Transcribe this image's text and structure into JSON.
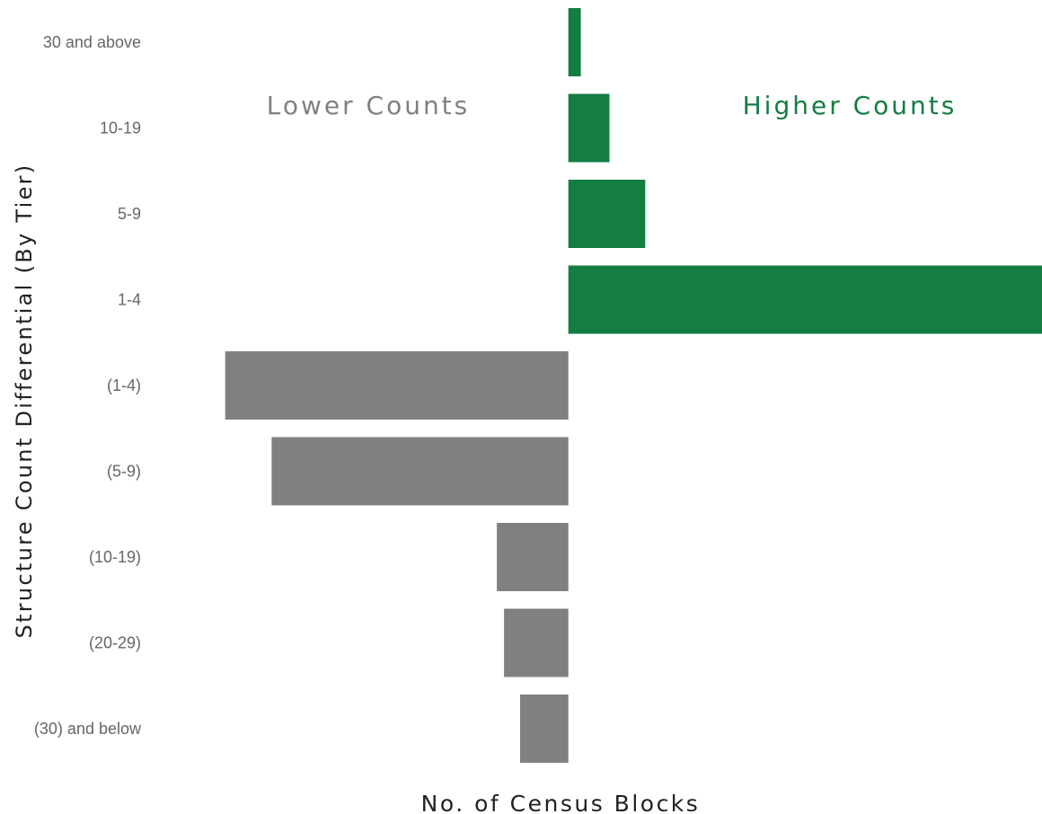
{
  "chart_data": {
    "type": "bar",
    "orientation": "horizontal",
    "title": "",
    "xlabel": "No. of Census Blocks",
    "ylabel": "Structure Count Differential (By Tier)",
    "annotations": {
      "left": "Lower Counts",
      "right": "Higher Counts"
    },
    "categories": [
      "30 and above",
      "10-19",
      "5-9",
      "1-4",
      "(1-4)",
      "(5-9)",
      "(10-19)",
      "(20-29)",
      "(30) and below"
    ],
    "series": [
      {
        "values": [
          7,
          23,
          43,
          265,
          -192,
          -166,
          -40,
          -36,
          -27
        ]
      }
    ],
    "xlim": [
      -318,
      265
    ],
    "grid": false,
    "colors": {
      "positive": "#137d43",
      "negative": "#808080",
      "tick_text": "#666666",
      "axis_text": "#222222",
      "annotation_left": "#808080",
      "annotation_right": "#137d43"
    }
  }
}
